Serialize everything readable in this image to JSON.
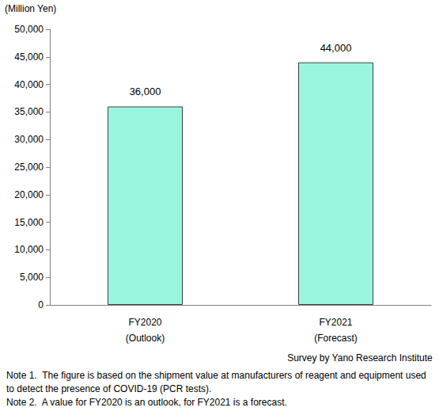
{
  "chart_data": {
    "type": "bar",
    "ylabel": "(Million Yen)",
    "categories": [
      "FY2020\n(Outlook)",
      "FY2021\n(Forecast)"
    ],
    "values": [
      36000,
      44000
    ],
    "value_labels": [
      "36,000",
      "44,000"
    ],
    "data_labels": true,
    "color": "#99f5de",
    "ylim": [
      0,
      50000
    ],
    "yticks": [
      0,
      {
        "value": 5000,
        "label": "5,000"
      },
      {
        "value": 10000,
        "label": "10,000"
      },
      {
        "value": 15000,
        "label": "15,000"
      },
      {
        "value": 20000,
        "label": "20,000"
      },
      {
        "value": 25000,
        "label": "25,000"
      },
      {
        "value": 30000,
        "label": "30,000"
      },
      {
        "value": 35000,
        "label": "35,000"
      },
      {
        "value": 40000,
        "label": "40,000"
      },
      {
        "value": 45000,
        "label": "45,000"
      },
      {
        "value": 50000,
        "label": "50,000"
      }
    ],
    "grid": false,
    "source": "Survey by Yano Research Institute",
    "notes": [
      "Note 1.  The figure is based on the shipment value at manufacturers of reagent and equipment used to detect the presence of COVID-19 (PCR tests).",
      "Note 2.  A value for FY2020 is an outlook, for FY2021 is a forecast."
    ]
  }
}
